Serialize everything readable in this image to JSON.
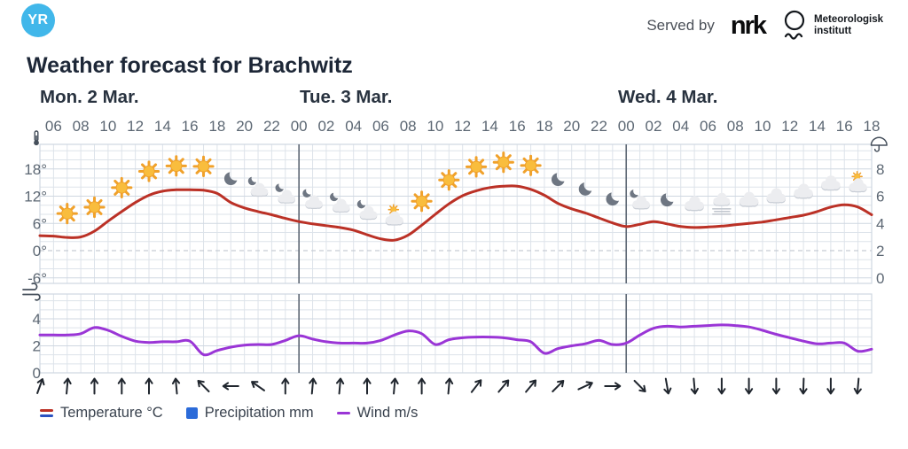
{
  "header": {
    "logo_text": "YR",
    "served_by": "Served by",
    "nrk_logo": "nrk",
    "met_line1": "Meteorologisk",
    "met_line2": "institutt"
  },
  "title": "Weather forecast for Brachwitz",
  "legend": {
    "items": [
      {
        "label": "Temperature °C"
      },
      {
        "label": "Precipitation mm"
      },
      {
        "label": "Wind m/s"
      }
    ]
  },
  "colors": {
    "yr_blue": "#41b7ea",
    "temperature_line": "#bb3126",
    "precipitation_blue": "#2b6bd9",
    "wind_line": "#9a35d6",
    "grid": "#dde3ea",
    "grid_major": "#cfd7e1",
    "day_separator": "#5d6774",
    "tick_text": "#5c6773",
    "arrow": "#20262e"
  },
  "chart_data": {
    "type": "line",
    "title": "Weather forecast for Brachwitz",
    "x_axis": {
      "start": "Mon 05:00",
      "end": "Wed 18:00",
      "step_hours": 1,
      "tick_every_hours": 2,
      "tick_labels": [
        "06",
        "08",
        "10",
        "12",
        "14",
        "16",
        "18",
        "20",
        "22",
        "00",
        "02",
        "04",
        "06",
        "08",
        "10",
        "12",
        "14",
        "16",
        "18",
        "20",
        "22",
        "00",
        "02",
        "04",
        "06",
        "08",
        "10",
        "12",
        "14",
        "16",
        "18"
      ],
      "day_labels": [
        "Mon. 2 Mar.",
        "Tue. 3 Mar.",
        "Wed. 4 Mar."
      ],
      "day_boundaries_hours_from_start": [
        19,
        43
      ]
    },
    "temperature_panel": {
      "series_name": "Temperature °C",
      "unit": "°C",
      "yticks": [
        18,
        12,
        6,
        0,
        -6
      ],
      "ytick_labels": [
        "18°",
        "12°",
        "6°",
        "0°",
        "-6°"
      ],
      "zero_line_dashed": true,
      "hourly_values": [
        3.3,
        3.2,
        2.9,
        3.0,
        4.3,
        6.5,
        8.6,
        10.6,
        12.2,
        13.1,
        13.4,
        13.4,
        13.3,
        12.6,
        10.6,
        9.4,
        8.6,
        7.9,
        7.1,
        6.4,
        5.9,
        5.5,
        5.1,
        4.5,
        3.5,
        2.6,
        2.3,
        3.4,
        5.6,
        8.0,
        10.3,
        12.1,
        13.2,
        13.9,
        14.2,
        14.2,
        13.5,
        12.2,
        10.4,
        9.2,
        8.3,
        7.2,
        6.1,
        5.3,
        5.8,
        6.4,
        5.9,
        5.3,
        5.1,
        5.2,
        5.4,
        5.7,
        6.0,
        6.3,
        6.8,
        7.3,
        7.8,
        8.6,
        9.6,
        10.1,
        9.6,
        7.9
      ]
    },
    "precipitation": {
      "series_name": "Precipitation mm",
      "unit": "mm",
      "axis_side": "right",
      "yticks": [
        8,
        6,
        4,
        2,
        0
      ],
      "all_values_zero": true
    },
    "wind_panel": {
      "series_name": "Wind m/s",
      "unit": "m/s",
      "yticks": [
        4,
        2,
        0
      ],
      "hourly_values": [
        2.8,
        2.8,
        2.8,
        2.9,
        3.35,
        3.15,
        2.7,
        2.35,
        2.25,
        2.3,
        2.3,
        2.35,
        1.35,
        1.65,
        1.9,
        2.05,
        2.1,
        2.1,
        2.4,
        2.75,
        2.5,
        2.3,
        2.2,
        2.2,
        2.2,
        2.4,
        2.8,
        3.1,
        2.9,
        2.1,
        2.45,
        2.6,
        2.65,
        2.65,
        2.6,
        2.45,
        2.3,
        1.45,
        1.8,
        2.0,
        2.15,
        2.4,
        2.1,
        2.2,
        2.8,
        3.3,
        3.45,
        3.4,
        3.45,
        3.5,
        3.55,
        3.5,
        3.4,
        3.15,
        2.85,
        2.6,
        2.35,
        2.15,
        2.2,
        2.2,
        1.6,
        1.75
      ]
    },
    "weather_icons": [
      {
        "time": "Mon 07",
        "icon": "sun"
      },
      {
        "time": "Mon 09",
        "icon": "sun"
      },
      {
        "time": "Mon 11",
        "icon": "sun"
      },
      {
        "time": "Mon 13",
        "icon": "sun"
      },
      {
        "time": "Mon 15",
        "icon": "sun"
      },
      {
        "time": "Mon 17",
        "icon": "sun"
      },
      {
        "time": "Mon 19",
        "icon": "moon"
      },
      {
        "time": "Mon 21",
        "icon": "moon-cloud"
      },
      {
        "time": "Mon 23",
        "icon": "moon-cloud"
      },
      {
        "time": "Tue 01",
        "icon": "moon-cloud"
      },
      {
        "time": "Tue 03",
        "icon": "moon-cloud"
      },
      {
        "time": "Tue 05",
        "icon": "moon-cloud"
      },
      {
        "time": "Tue 07",
        "icon": "sun-cloud"
      },
      {
        "time": "Tue 09",
        "icon": "sun"
      },
      {
        "time": "Tue 11",
        "icon": "sun"
      },
      {
        "time": "Tue 13",
        "icon": "sun"
      },
      {
        "time": "Tue 15",
        "icon": "sun"
      },
      {
        "time": "Tue 17",
        "icon": "sun"
      },
      {
        "time": "Tue 19",
        "icon": "moon"
      },
      {
        "time": "Tue 21",
        "icon": "moon"
      },
      {
        "time": "Tue 23",
        "icon": "moon"
      },
      {
        "time": "Wed 01",
        "icon": "moon-cloud"
      },
      {
        "time": "Wed 03",
        "icon": "moon"
      },
      {
        "time": "Wed 05",
        "icon": "cloud"
      },
      {
        "time": "Wed 07",
        "icon": "fog"
      },
      {
        "time": "Wed 09",
        "icon": "cloud"
      },
      {
        "time": "Wed 11",
        "icon": "cloud"
      },
      {
        "time": "Wed 13",
        "icon": "cloud"
      },
      {
        "time": "Wed 15",
        "icon": "cloud"
      },
      {
        "time": "Wed 17",
        "icon": "sun-cloud"
      }
    ],
    "wind_arrows": [
      {
        "time": "Mon 05",
        "deg": 20
      },
      {
        "time": "Mon 07",
        "deg": 5
      },
      {
        "time": "Mon 09",
        "deg": 0
      },
      {
        "time": "Mon 11",
        "deg": 0
      },
      {
        "time": "Mon 13",
        "deg": 0
      },
      {
        "time": "Mon 15",
        "deg": -5
      },
      {
        "time": "Mon 17",
        "deg": -45
      },
      {
        "time": "Mon 19",
        "deg": -90
      },
      {
        "time": "Mon 21",
        "deg": -55
      },
      {
        "time": "Mon 23",
        "deg": 0
      },
      {
        "time": "Tue 01",
        "deg": 5
      },
      {
        "time": "Tue 03",
        "deg": 5
      },
      {
        "time": "Tue 05",
        "deg": 0
      },
      {
        "time": "Tue 07",
        "deg": 5
      },
      {
        "time": "Tue 09",
        "deg": 0
      },
      {
        "time": "Tue 11",
        "deg": 5
      },
      {
        "time": "Tue 13",
        "deg": 38
      },
      {
        "time": "Tue 15",
        "deg": 40
      },
      {
        "time": "Tue 17",
        "deg": 40
      },
      {
        "time": "Tue 19",
        "deg": 45
      },
      {
        "time": "Tue 21",
        "deg": 65
      },
      {
        "time": "Tue 23",
        "deg": 90
      },
      {
        "time": "Wed 01",
        "deg": 135
      },
      {
        "time": "Wed 03",
        "deg": 170
      },
      {
        "time": "Wed 05",
        "deg": 175
      },
      {
        "time": "Wed 07",
        "deg": 180
      },
      {
        "time": "Wed 09",
        "deg": 180
      },
      {
        "time": "Wed 11",
        "deg": 180
      },
      {
        "time": "Wed 13",
        "deg": 182
      },
      {
        "time": "Wed 15",
        "deg": 180
      },
      {
        "time": "Wed 17",
        "deg": 185
      }
    ]
  }
}
